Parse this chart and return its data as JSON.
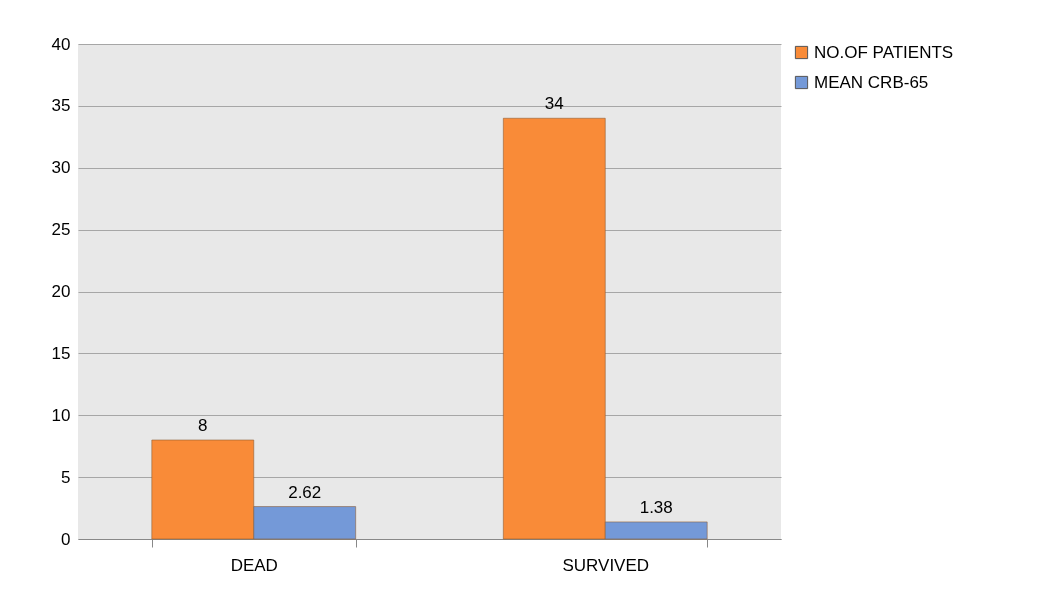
{
  "chart_data": {
    "type": "bar",
    "categories": [
      "DEAD",
      "SURVIVED"
    ],
    "series": [
      {
        "name": "NO.OF PATIENTS",
        "color": "#f98b38",
        "values": [
          8,
          34
        ]
      },
      {
        "name": "MEAN CRB-65",
        "color": "#7499d8",
        "values": [
          2.62,
          1.38
        ]
      }
    ],
    "ylim": [
      0,
      40
    ],
    "yticks": [
      0,
      5,
      10,
      15,
      20,
      25,
      30,
      35,
      40
    ],
    "grid": "y",
    "legend": "right",
    "data_labels": true
  }
}
